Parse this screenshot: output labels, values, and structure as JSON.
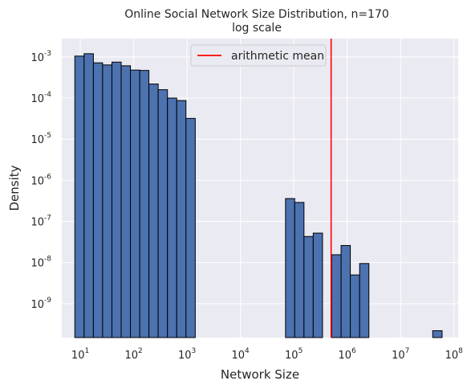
{
  "chart_data": {
    "type": "bar",
    "title": "Online Social Network Size Distribution, n=170",
    "subtitle": "log scale",
    "xlabel": "Network Size",
    "ylabel": "Density",
    "x_scale": "log",
    "y_scale": "log",
    "xlim": [
      4.5,
      120000000
    ],
    "ylim": [
      1.5e-10,
      0.0028
    ],
    "x_ticks": [
      {
        "value": 10,
        "label_base": "10",
        "label_exp": "1"
      },
      {
        "value": 100,
        "label_base": "10",
        "label_exp": "2"
      },
      {
        "value": 1000,
        "label_base": "10",
        "label_exp": "3"
      },
      {
        "value": 10000,
        "label_base": "10",
        "label_exp": "4"
      },
      {
        "value": 100000,
        "label_base": "10",
        "label_exp": "5"
      },
      {
        "value": 1000000,
        "label_base": "10",
        "label_exp": "6"
      },
      {
        "value": 10000000,
        "label_base": "10",
        "label_exp": "7"
      },
      {
        "value": 100000000,
        "label_base": "10",
        "label_exp": "8"
      }
    ],
    "y_ticks": [
      {
        "value": 1e-09,
        "label_base": "10",
        "label_exp": "-9"
      },
      {
        "value": 1e-08,
        "label_base": "10",
        "label_exp": "-8"
      },
      {
        "value": 1e-07,
        "label_base": "10",
        "label_exp": "-7"
      },
      {
        "value": 1e-06,
        "label_base": "10",
        "label_exp": "-6"
      },
      {
        "value": 1e-05,
        "label_base": "10",
        "label_exp": "-5"
      },
      {
        "value": 0.0001,
        "label_base": "10",
        "label_exp": "-4"
      },
      {
        "value": 0.001,
        "label_base": "10",
        "label_exp": "-3"
      }
    ],
    "bins": [
      {
        "x0": 7.9,
        "x1": 11.8,
        "density": 0.00105
      },
      {
        "x0": 11.8,
        "x1": 17.6,
        "density": 0.0012
      },
      {
        "x0": 17.6,
        "x1": 26.2,
        "density": 0.00072
      },
      {
        "x0": 26.2,
        "x1": 39.1,
        "density": 0.00064
      },
      {
        "x0": 39.1,
        "x1": 58.3,
        "density": 0.00075
      },
      {
        "x0": 58.3,
        "x1": 86.9,
        "density": 0.00061
      },
      {
        "x0": 86.9,
        "x1": 130,
        "density": 0.00048
      },
      {
        "x0": 130,
        "x1": 193,
        "density": 0.00047
      },
      {
        "x0": 193,
        "x1": 288,
        "density": 0.00022
      },
      {
        "x0": 288,
        "x1": 430,
        "density": 0.00016
      },
      {
        "x0": 430,
        "x1": 641,
        "density": 0.0001
      },
      {
        "x0": 641,
        "x1": 955,
        "density": 8.7e-05
      },
      {
        "x0": 955,
        "x1": 1425,
        "density": 3.2e-05
      },
      {
        "x0": 1425,
        "x1": 2125,
        "density": 0
      },
      {
        "x0": 2125,
        "x1": 3170,
        "density": 0
      },
      {
        "x0": 3170,
        "x1": 4730,
        "density": 0
      },
      {
        "x0": 4730,
        "x1": 7050,
        "density": 0
      },
      {
        "x0": 7050,
        "x1": 10500,
        "density": 0
      },
      {
        "x0": 70000,
        "x1": 104000,
        "density": 3.6e-07
      },
      {
        "x0": 104000,
        "x1": 155000,
        "density": 2.9e-07
      },
      {
        "x0": 155000,
        "x1": 231000,
        "density": 4.3e-08
      },
      {
        "x0": 231000,
        "x1": 345000,
        "density": 5.2e-08
      },
      {
        "x0": 345000,
        "x1": 515000,
        "density": 0
      },
      {
        "x0": 515000,
        "x1": 768000,
        "density": 1.55e-08
      },
      {
        "x0": 768000,
        "x1": 1145000,
        "density": 2.6e-08
      },
      {
        "x0": 1145000,
        "x1": 1710000,
        "density": 5e-09
      },
      {
        "x0": 1710000,
        "x1": 2550000,
        "density": 9.5e-09
      },
      {
        "x0": 40000000,
        "x1": 60000000,
        "density": 2.2e-10
      }
    ],
    "reference_line": {
      "label": "arithmetic mean",
      "x": 500000,
      "color": "#ff0000"
    },
    "legend": {
      "position": "top-center",
      "entries": [
        "arithmetic mean"
      ]
    },
    "grid": true,
    "colors": {
      "bar_fill": "#4c72b0",
      "bar_edge": "#000000",
      "plot_bg": "#eaeaf2",
      "grid": "#ffffff"
    }
  }
}
